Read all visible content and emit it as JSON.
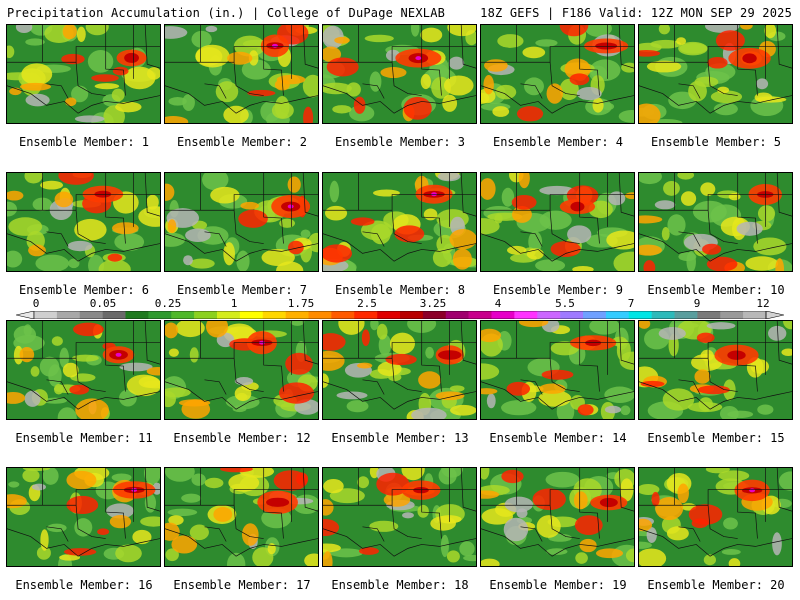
{
  "header": {
    "left": "Precipitation Accumulation (in.) | College of DuPage NEXLAB",
    "right": "18Z GEFS | F186 Valid: 12Z MON SEP 29 2025"
  },
  "colorbar": {
    "tick_labels": [
      "0",
      "0.05",
      "0.25",
      "1",
      "1.75",
      "2.5",
      "3.25",
      "4",
      "5.5",
      "7",
      "9",
      "12"
    ],
    "colors": [
      "#e8e8e8",
      "#cfcfcf",
      "#a8a8a8",
      "#8a8a8a",
      "#6a6a6a",
      "#1e7a1e",
      "#2e9a2e",
      "#4fb82a",
      "#8cd11f",
      "#d4ec1c",
      "#ffff00",
      "#ffd700",
      "#ffb000",
      "#ff8c00",
      "#ff5a00",
      "#ff2a00",
      "#e00000",
      "#b80000",
      "#8c0028",
      "#a0006e",
      "#c8008c",
      "#e600c8",
      "#ff33ff",
      "#cc66ff",
      "#9f7aff",
      "#6fa0ff",
      "#33ccff",
      "#00e5e5",
      "#2dbaba",
      "#5a9e9e",
      "#7a7a7a",
      "#9a9a9a",
      "#b8b8b8",
      "#d2d2d2"
    ]
  },
  "panels": [
    {
      "label": "Ensemble Member: 1"
    },
    {
      "label": "Ensemble Member: 2"
    },
    {
      "label": "Ensemble Member: 3"
    },
    {
      "label": "Ensemble Member: 4"
    },
    {
      "label": "Ensemble Member: 5"
    },
    {
      "label": "Ensemble Member: 6"
    },
    {
      "label": "Ensemble Member: 7"
    },
    {
      "label": "Ensemble Member: 8"
    },
    {
      "label": "Ensemble Member: 9"
    },
    {
      "label": "Ensemble Member: 10"
    },
    {
      "label": "Ensemble Member: 11"
    },
    {
      "label": "Ensemble Member: 12"
    },
    {
      "label": "Ensemble Member: 13"
    },
    {
      "label": "Ensemble Member: 14"
    },
    {
      "label": "Ensemble Member: 15"
    },
    {
      "label": "Ensemble Member: 16"
    },
    {
      "label": "Ensemble Member: 17"
    },
    {
      "label": "Ensemble Member: 18"
    },
    {
      "label": "Ensemble Member: 19"
    },
    {
      "label": "Ensemble Member: 20"
    }
  ]
}
